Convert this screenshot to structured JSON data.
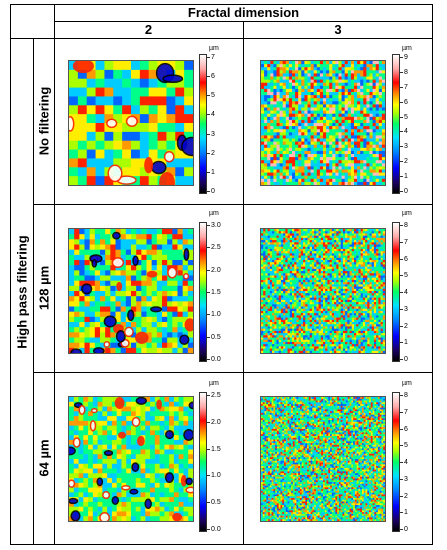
{
  "header": {
    "title": "Fractal dimension",
    "col_2": "2",
    "col_3": "3"
  },
  "row_group_label": "High pass filtering",
  "rows": [
    {
      "label": "No filtering"
    },
    {
      "label": "128 µm"
    },
    {
      "label": "64 µm"
    }
  ],
  "unit": "µm",
  "scales": {
    "r0c0": [
      "0",
      "1",
      "2",
      "3",
      "4",
      "5",
      "6",
      "7"
    ],
    "r0c1": [
      "0",
      "1",
      "2",
      "3",
      "4",
      "5",
      "6",
      "7",
      "8",
      "9"
    ],
    "r1c0": [
      "0.0",
      "0.5",
      "1.0",
      "1.5",
      "2.0",
      "2.5",
      "3.0"
    ],
    "r1c1": [
      "0",
      "1",
      "2",
      "3",
      "4",
      "5",
      "6",
      "7",
      "8"
    ],
    "r2c0": [
      "0.0",
      "0.5",
      "1.0",
      "1.5",
      "2.0",
      "2.5"
    ],
    "r2c1": [
      "0",
      "1",
      "2",
      "3",
      "4",
      "5",
      "6",
      "7",
      "8"
    ]
  },
  "colors": {
    "low": "#000000",
    "blue": "#0000ff",
    "cyan": "#00e0ff",
    "green": "#00ff66",
    "yellow": "#ffff00",
    "orange": "#ff8800",
    "red": "#ff0000",
    "high": "#ffffff"
  }
}
